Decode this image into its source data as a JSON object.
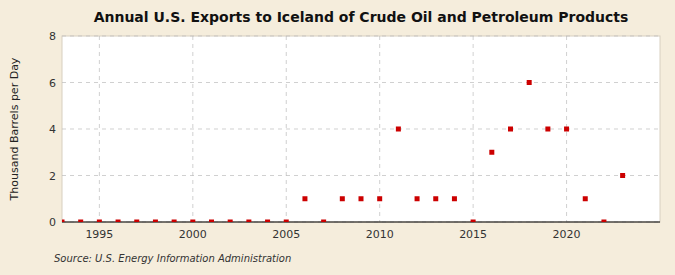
{
  "chart_data": {
    "type": "scatter",
    "title": "Annual U.S. Exports to Iceland of Crude Oil and Petroleum Products",
    "y_label": "Thousand Barrels per Day",
    "source": "Source: U.S. Energy Information Administration",
    "x": [
      1993,
      1994,
      1995,
      1996,
      1997,
      1998,
      1999,
      2000,
      2001,
      2002,
      2003,
      2004,
      2005,
      2006,
      2007,
      2008,
      2009,
      2010,
      2011,
      2012,
      2013,
      2014,
      2015,
      2016,
      2017,
      2018,
      2019,
      2020,
      2021,
      2022,
      2023
    ],
    "values": [
      0,
      0,
      0,
      0,
      0,
      0,
      0,
      0,
      0,
      0,
      0,
      0,
      0,
      1,
      0,
      1,
      1,
      1,
      4,
      1,
      1,
      1,
      0,
      3,
      4,
      6,
      4,
      4,
      1,
      0,
      2
    ],
    "color": "#cc0000",
    "marker": "square",
    "xlim": [
      1993,
      2025
    ],
    "ylim": [
      0,
      8
    ],
    "xticks": [
      1995,
      2000,
      2005,
      2010,
      2015,
      2020
    ],
    "yticks": [
      0,
      2,
      4,
      6,
      8
    ],
    "grid": true
  }
}
